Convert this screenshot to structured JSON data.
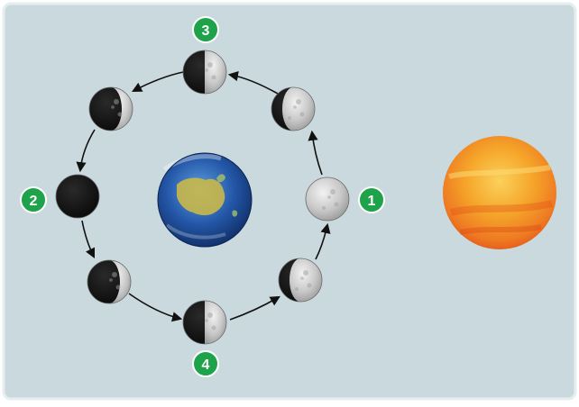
{
  "colors": {
    "panel_background": "#c9d9de",
    "panel_border": "#e2eaed",
    "badge_green": "#1ea34a",
    "arrow": "#111111",
    "moon_light": "#c9c9c9",
    "moon_dark": "#151515",
    "sun_core": "#f7b52c",
    "sun_edge": "#e8551c",
    "earth_ocean": "#2457a8",
    "earth_land": "#c9b84a"
  },
  "icons": {
    "earth": "earth-globe-australia",
    "sun": "sun-watercolor",
    "moon": "moon-phase"
  },
  "labels": {
    "full": "1",
    "new": "2",
    "first_quarter": "3",
    "third_quarter": "4"
  },
  "moon_phases": [
    {
      "id": "position-1",
      "lit_fraction": 1.0,
      "lit_side": "right"
    },
    {
      "id": "position-top-right",
      "lit_fraction": 0.75,
      "lit_side": "right"
    },
    {
      "id": "position-3",
      "lit_fraction": 0.5,
      "lit_side": "right"
    },
    {
      "id": "position-top-left",
      "lit_fraction": 0.25,
      "lit_side": "right"
    },
    {
      "id": "position-2",
      "lit_fraction": 0.0,
      "lit_side": "right"
    },
    {
      "id": "position-bottom-left",
      "lit_fraction": 0.25,
      "lit_side": "right"
    },
    {
      "id": "position-4",
      "lit_fraction": 0.5,
      "lit_side": "right"
    },
    {
      "id": "position-bottom-right",
      "lit_fraction": 0.75,
      "lit_side": "right"
    }
  ]
}
